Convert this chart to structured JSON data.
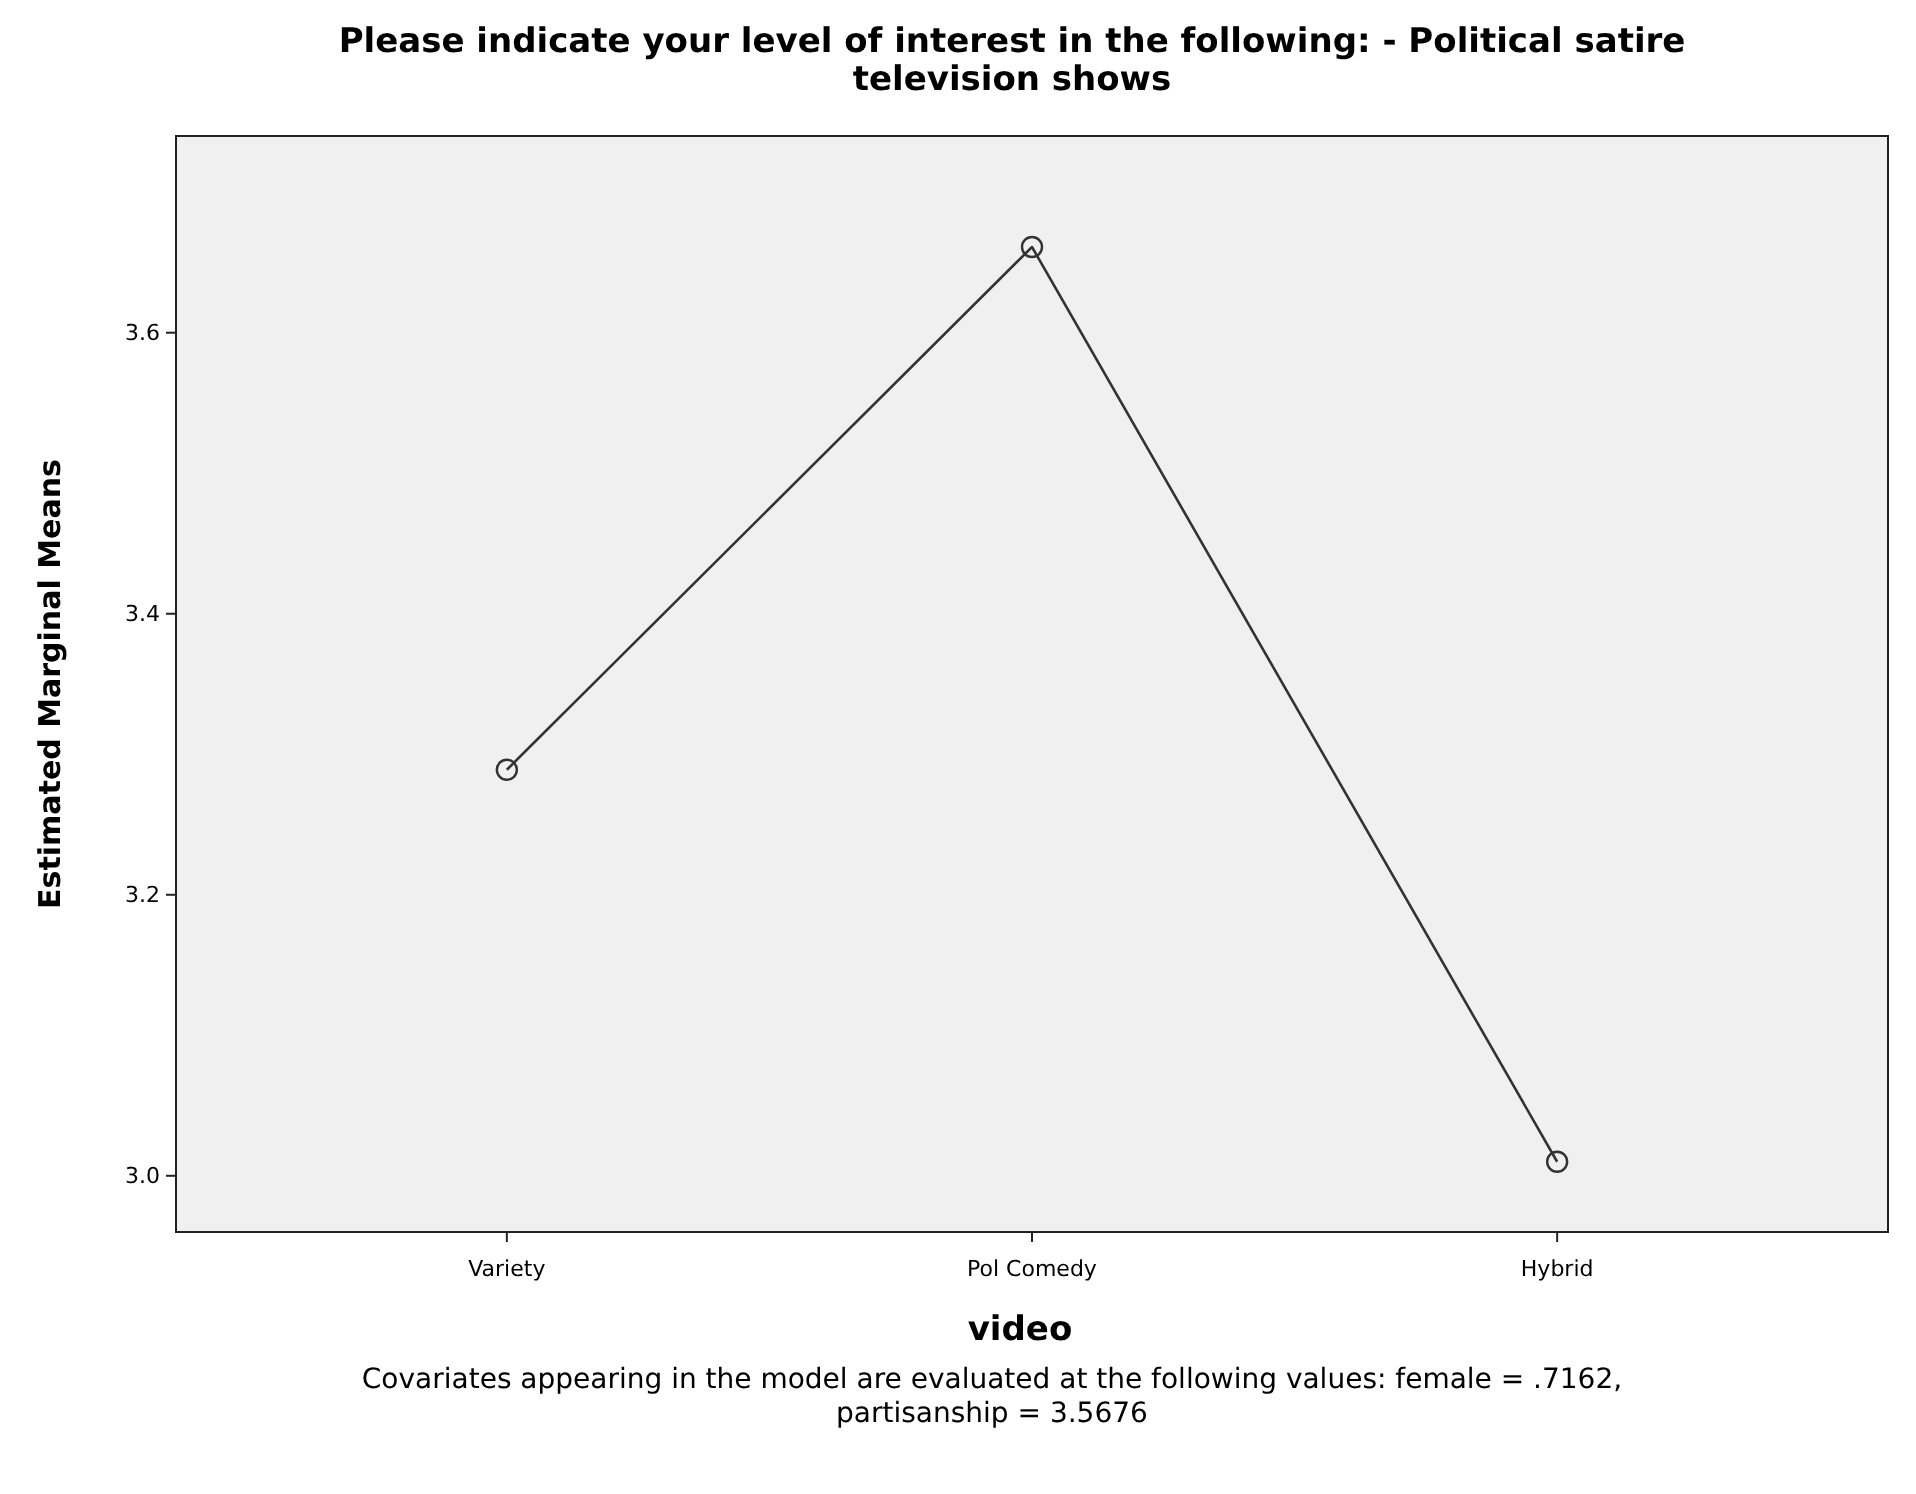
{
  "chart_data": {
    "type": "line",
    "title": "Please indicate your level of interest in the following: - Political satire television shows",
    "xlabel": "video",
    "ylabel": "Estimated Marginal Means",
    "annotations": [
      "Covariates appearing in the model are evaluated at the following values: female = .7162, partisanship = 3.5676"
    ],
    "categories": [
      "Variety",
      "Pol Comedy",
      "Hybrid"
    ],
    "series": [
      {
        "color": "#333333",
        "values": [
          3.289,
          3.661,
          3.01
        ]
      }
    ],
    "ylim": [
      2.96,
      3.74
    ],
    "yticks": [
      {
        "value": 3.0,
        "label": "3.0"
      },
      {
        "value": 3.2,
        "label": "3.2"
      },
      {
        "value": 3.4,
        "label": "3.4"
      },
      {
        "value": 3.6,
        "label": "3.6"
      }
    ],
    "grid": false,
    "marker": "circle",
    "line_style": "solid"
  }
}
